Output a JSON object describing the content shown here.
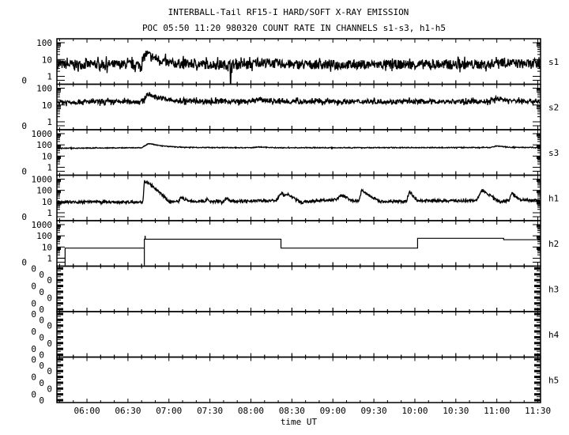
{
  "chart_data": {
    "type": "line",
    "title": "INTERBALL-Tail RF15-I HARD/SOFT X-RAY EMISSION",
    "subtitle": "POC 05:50 11:20 980320  COUNT RATE IN CHANNELS s1-s3, h1-h5",
    "xlabel": "time UT",
    "xlim": [
      "05:38",
      "11:32"
    ],
    "x_ticks": [
      "06:00",
      "06:30",
      "07:00",
      "07:30",
      "08:00",
      "08:30",
      "09:00",
      "09:30",
      "10:00",
      "10:30",
      "11:00",
      "11:30"
    ],
    "y_scale": "log",
    "grid": false,
    "line_color": "#000000",
    "panels": [
      {
        "name": "s1",
        "y_ticks": [
          "100",
          "10",
          "1",
          "0"
        ],
        "points": [
          [
            "05:38",
            5
          ],
          [
            "06:40",
            5
          ],
          [
            "06:43",
            22
          ],
          [
            "06:50",
            12
          ],
          [
            "07:00",
            6
          ],
          [
            "07:30",
            5
          ],
          [
            "08:00",
            5
          ],
          [
            "08:05",
            7
          ],
          [
            "08:30",
            5
          ],
          [
            "09:30",
            5
          ],
          [
            "10:55",
            5
          ],
          [
            "11:00",
            8
          ],
          [
            "11:10",
            6
          ],
          [
            "11:32",
            5
          ]
        ],
        "dropouts": [
          "07:45"
        ]
      },
      {
        "name": "s2",
        "y_ticks": [
          "100",
          "10",
          "1",
          "0"
        ],
        "points": [
          [
            "05:38",
            15
          ],
          [
            "06:41",
            16
          ],
          [
            "06:44",
            45
          ],
          [
            "06:52",
            28
          ],
          [
            "07:05",
            17
          ],
          [
            "08:00",
            16
          ],
          [
            "08:05",
            21
          ],
          [
            "08:20",
            16
          ],
          [
            "10:55",
            16
          ],
          [
            "11:00",
            25
          ],
          [
            "11:10",
            18
          ],
          [
            "11:32",
            16
          ]
        ]
      },
      {
        "name": "s3",
        "y_ticks": [
          "1000",
          "100",
          "10",
          "1",
          "0"
        ],
        "points": [
          [
            "05:38",
            50
          ],
          [
            "06:40",
            55
          ],
          [
            "06:45",
            130
          ],
          [
            "06:55",
            80
          ],
          [
            "07:10",
            60
          ],
          [
            "08:00",
            55
          ],
          [
            "08:05",
            65
          ],
          [
            "08:20",
            55
          ],
          [
            "10:55",
            58
          ],
          [
            "11:00",
            80
          ],
          [
            "11:10",
            60
          ],
          [
            "11:32",
            58
          ]
        ]
      },
      {
        "name": "h1",
        "y_ticks": [
          "1000",
          "100",
          "10",
          "1",
          "0"
        ],
        "points": [
          [
            "05:38",
            9
          ],
          [
            "06:41",
            9
          ],
          [
            "06:42",
            700
          ],
          [
            "06:45",
            450
          ],
          [
            "06:55",
            40
          ],
          [
            "07:00",
            10
          ],
          [
            "07:07",
            10
          ],
          [
            "07:09",
            25
          ],
          [
            "07:13",
            12
          ],
          [
            "07:26",
            10
          ],
          [
            "07:28",
            16
          ],
          [
            "07:31",
            10
          ],
          [
            "07:40",
            10
          ],
          [
            "07:42",
            20
          ],
          [
            "07:45",
            11
          ],
          [
            "08:18",
            12
          ],
          [
            "08:23",
            60
          ],
          [
            "08:24",
            35
          ],
          [
            "08:26",
            50
          ],
          [
            "08:33",
            15
          ],
          [
            "08:37",
            8
          ],
          [
            "08:40",
            10
          ],
          [
            "09:03",
            15
          ],
          [
            "09:05",
            35
          ],
          [
            "09:09",
            30
          ],
          [
            "09:12",
            14
          ],
          [
            "09:14",
            10
          ],
          [
            "09:19",
            12
          ],
          [
            "09:21",
            100
          ],
          [
            "09:30",
            20
          ],
          [
            "09:35",
            10
          ],
          [
            "09:54",
            10
          ],
          [
            "09:56",
            80
          ],
          [
            "10:02",
            12
          ],
          [
            "10:45",
            12
          ],
          [
            "10:49",
            100
          ],
          [
            "10:58",
            20
          ],
          [
            "11:02",
            10
          ],
          [
            "11:09",
            12
          ],
          [
            "11:11",
            60
          ],
          [
            "11:17",
            14
          ],
          [
            "11:32",
            12
          ]
        ]
      },
      {
        "name": "h2",
        "y_ticks": [
          "1000",
          "100",
          "10",
          "1",
          "0"
        ],
        "steps": [
          [
            "05:38",
            1
          ],
          [
            "05:44",
            8
          ],
          [
            "06:42",
            50
          ],
          [
            "08:22",
            8
          ],
          [
            "10:02",
            60
          ],
          [
            "11:05",
            45
          ],
          [
            "11:32",
            45
          ]
        ],
        "dropouts": [
          "05:44",
          "06:42"
        ],
        "spike": [
          "06:42",
          100
        ]
      },
      {
        "name": "h3",
        "y_ticks": [
          "0",
          "0",
          "0",
          "0",
          "0",
          "0",
          "0",
          "0"
        ]
      },
      {
        "name": "h4",
        "y_ticks": [
          "0",
          "0",
          "0",
          "0",
          "0",
          "0",
          "0",
          "0"
        ]
      },
      {
        "name": "h5",
        "y_ticks": [
          "0",
          "0",
          "0",
          "0",
          "0",
          "0",
          "0",
          "0"
        ]
      }
    ]
  }
}
